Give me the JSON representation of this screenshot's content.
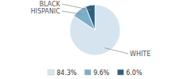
{
  "chart_data": {
    "type": "pie",
    "categories": [
      "WHITE",
      "HISPANIC",
      "BLACK"
    ],
    "values": [
      84.3,
      9.6,
      6.0
    ],
    "value_labels": [
      "84.3%",
      "9.6%",
      "6.0%"
    ],
    "colors": [
      "#d6e4f0",
      "#7bafc9",
      "#2d6080"
    ],
    "legend": "bottom"
  }
}
